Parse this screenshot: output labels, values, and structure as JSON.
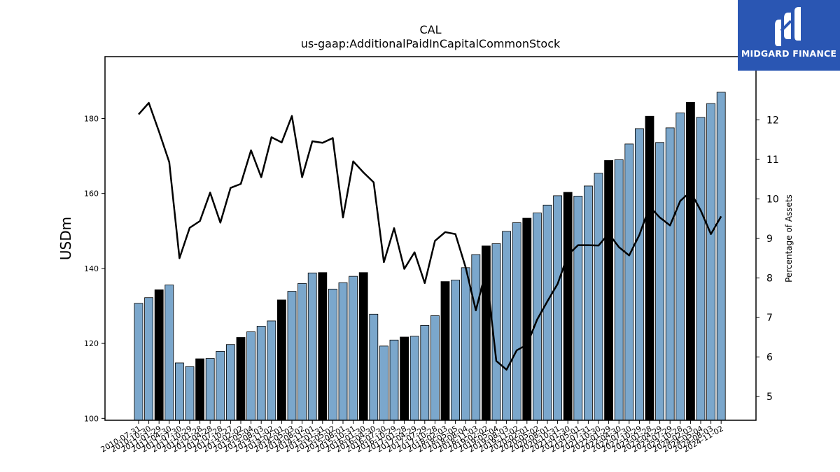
{
  "brand": {
    "name": "MIDGARD FINANCE",
    "bg_color": "#2a56b3"
  },
  "chart_data": {
    "type": "bar",
    "title": "CAL",
    "subtitle": "us-gaap:AdditionalPaidInCapitalCommonStock",
    "ylabel": "USDm",
    "y2label": "Percentage of Assets",
    "ylim": [
      99.5,
      196.5
    ],
    "y2lim": [
      4.4,
      13.6
    ],
    "yticks": [
      100,
      120,
      140,
      160,
      180
    ],
    "y2ticks": [
      5,
      6,
      7,
      8,
      9,
      10,
      11,
      12
    ],
    "bar_color": "#7ba7cc",
    "highlight_color": "#000000",
    "line_color": "#000000",
    "categories": [
      "2010-07-31",
      "2010-10-30",
      "2011-01-29",
      "2011-04-30",
      "2011-07-30",
      "2011-10-29",
      "2012-01-28",
      "2012-04-28",
      "2012-07-28",
      "2012-10-27",
      "2013-02-02",
      "2013-05-04",
      "2013-08-03",
      "2013-11-02",
      "2014-02-01",
      "2014-05-03",
      "2014-08-02",
      "2014-11-01",
      "2015-01-31",
      "2015-05-02",
      "2015-08-01",
      "2015-10-31",
      "2016-01-30",
      "2016-04-30",
      "2016-07-30",
      "2016-10-29",
      "2017-01-28",
      "2017-04-29",
      "2017-07-29",
      "2017-10-28",
      "2018-02-03",
      "2018-05-05",
      "2018-08-04",
      "2018-11-03",
      "2019-02-02",
      "2019-05-04",
      "2019-08-03",
      "2019-11-02",
      "2020-02-01",
      "2020-05-02",
      "2020-08-01",
      "2020-10-31",
      "2021-01-30",
      "2021-05-01",
      "2021-07-31",
      "2021-10-30",
      "2022-01-29",
      "2022-04-30",
      "2022-07-30",
      "2022-10-29",
      "2023-01-28",
      "2023-04-29",
      "2023-07-29",
      "2023-10-28",
      "2024-02-03",
      "2024-05-04",
      "2024-08-03",
      "2024-11-02"
    ],
    "values": [
      130.7,
      132.2,
      134.3,
      135.6,
      114.8,
      113.8,
      115.9,
      116.0,
      117.9,
      119.7,
      121.6,
      123.1,
      124.6,
      126.0,
      131.6,
      133.9,
      136.0,
      138.8,
      138.9,
      134.5,
      136.2,
      137.9,
      138.9,
      127.8,
      119.3,
      120.9,
      121.7,
      121.9,
      124.8,
      127.4,
      136.5,
      136.9,
      140.2,
      143.7,
      146.0,
      146.6,
      149.9,
      152.2,
      153.4,
      154.8,
      156.9,
      159.4,
      160.3,
      159.3,
      162.0,
      165.4,
      168.8,
      169.0,
      173.2,
      177.3,
      180.6,
      173.6,
      177.5,
      181.5,
      184.3,
      180.3,
      184.0,
      187.0
    ],
    "highlight_indices": [
      2,
      6,
      10,
      14,
      18,
      22,
      26,
      30,
      34,
      38,
      42,
      46,
      50,
      54
    ],
    "xtick_labels": [
      "2010-07-31",
      "2010-10-30",
      "2011-01-29",
      "2011-04-30",
      "2011-07-30",
      "2011-10-29",
      "2012-01-28",
      "2012-04-28",
      "2012-07-28",
      "2012-10-27",
      "2013-02-02",
      "2013-05-04",
      "2013-08-03",
      "2013-11-02",
      "2014-02-01",
      "2014-05-03",
      "2014-08-02",
      "2014-11-01",
      "2015-01-31",
      "2015-05-02",
      "2015-08-01",
      "2015-10-31",
      "2016-01-30",
      "2016-04-30",
      "2016-07-30",
      "2016-10-29",
      "2017-01-28",
      "2017-04-29",
      "2017-07-29",
      "2017-10-28",
      "2018-02-03",
      "2018-05-05",
      "2018-08-04",
      "2018-11-03",
      "2019-02-02",
      "2019-05-04",
      "2019-08-03",
      "2019-11-02",
      "2020-02-01",
      "2020-05-02",
      "2020-08-01",
      "2020-10-31",
      "2021-01-30",
      "2021-05-01",
      "2021-07-31",
      "2021-10-30",
      "2022-01-29",
      "2022-04-30",
      "2022-07-30",
      "2022-10-29",
      "2023-01-28",
      "2023-04-29",
      "2023-07-29",
      "2023-10-28",
      "2024-02-03",
      "2024-05-04",
      "2024-08-03",
      "2024-11-02"
    ],
    "line_values": [
      12.14,
      12.43,
      11.7,
      10.93,
      8.5,
      9.27,
      9.44,
      10.16,
      9.4,
      10.28,
      10.38,
      11.23,
      10.55,
      11.56,
      11.43,
      12.1,
      10.55,
      11.46,
      11.42,
      11.54,
      9.53,
      10.95,
      10.67,
      10.42,
      8.4,
      9.26,
      8.23,
      8.65,
      7.87,
      8.94,
      9.16,
      9.11,
      8.27,
      7.18,
      8.2,
      5.9,
      5.68,
      6.17,
      6.31,
      6.95,
      7.41,
      7.85,
      8.58,
      8.83,
      8.83,
      8.82,
      9.12,
      8.78,
      8.57,
      9.09,
      9.81,
      9.53,
      9.33,
      9.95,
      10.18,
      9.71,
      9.11,
      9.56
    ]
  }
}
